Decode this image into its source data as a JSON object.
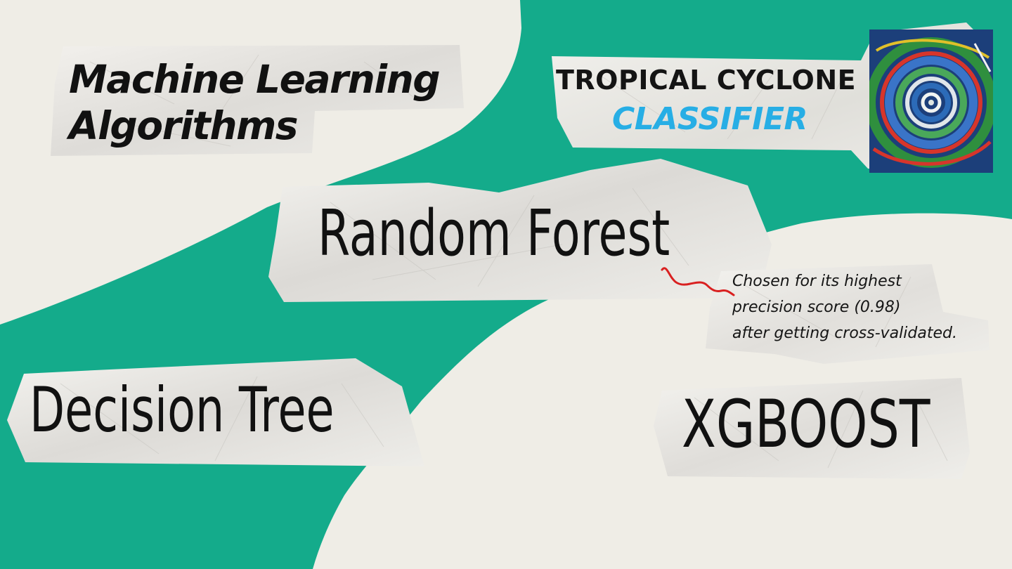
{
  "colors": {
    "background": "#efede6",
    "accent_band": "#14ab8b",
    "paper": "#e9e7e3",
    "classifier_text": "#27aee5",
    "squiggle": "#d92020"
  },
  "title": {
    "line1": "Machine Learning",
    "line2": "Algorithms"
  },
  "cyclone_card": {
    "line1": "TROPICAL CYCLONE",
    "line2": "CLASSIFIER",
    "image_icon": "cyclone-swirl-icon"
  },
  "algorithms": {
    "random_forest": "Random Forest",
    "decision_tree": "Decision Tree",
    "xgboost": "XGBOOST"
  },
  "note": {
    "line1": "Chosen for its highest",
    "line2": "precision score (0.98)",
    "line3": "after getting cross-validated."
  }
}
